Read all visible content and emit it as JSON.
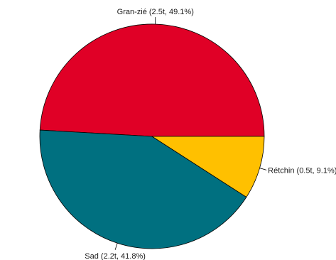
{
  "chart_data": {
    "type": "pie",
    "start_angle_deg": 0,
    "direction": "counterclockwise",
    "slices": [
      {
        "name": "Gran-zié",
        "value": 2.5,
        "percent": 49.1,
        "color": "#E00026",
        "label": "Gran-zié (2.5t, 49.1%)"
      },
      {
        "name": "Sad",
        "value": 2.2,
        "percent": 41.8,
        "color": "#007080",
        "label": "Sad (2.2t, 41.8%)"
      },
      {
        "name": "Rétchin",
        "value": 0.5,
        "percent": 9.1,
        "color": "#FFC000",
        "label": "Rétchin (0.5t, 9.1%)"
      }
    ]
  }
}
